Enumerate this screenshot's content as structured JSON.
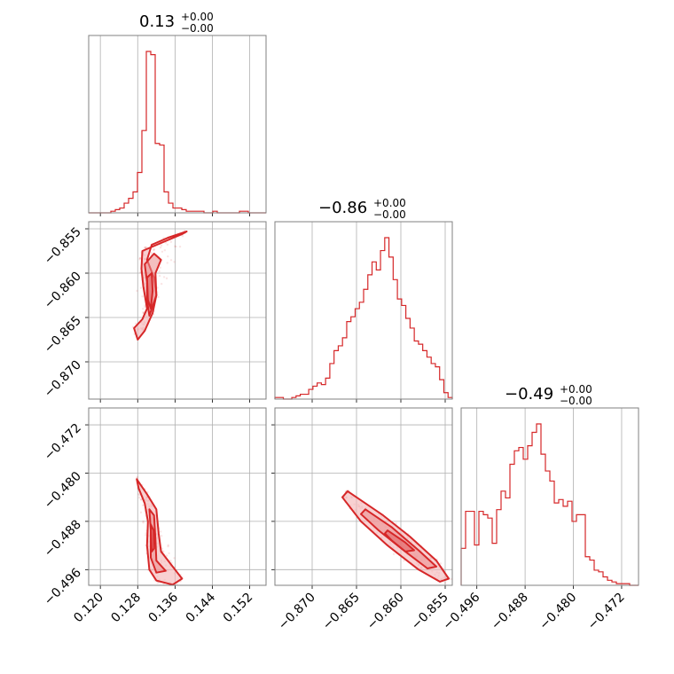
{
  "colors": {
    "line": "#d62728",
    "fill": "#f3b3b4",
    "grid": "#b0b0b0",
    "frame": "#808080"
  },
  "chart_data": {
    "type": "corner",
    "grid": true,
    "parameters": [
      {
        "title": "0.13",
        "upper": "+0.00",
        "lower": "−0.00",
        "range": [
          0.1175,
          0.1555
        ],
        "ticks": [
          0.12,
          0.128,
          0.136,
          0.144,
          0.152
        ],
        "tick_labels": [
          "0.120",
          "0.128",
          "0.136",
          "0.144",
          "0.152"
        ]
      },
      {
        "title": "−0.86",
        "upper": "+0.00",
        "lower": "−0.00",
        "range": [
          -0.8742,
          -0.8542
        ],
        "ticks": [
          -0.87,
          -0.865,
          -0.86,
          -0.855
        ],
        "tick_labels": [
          "−0.870",
          "−0.865",
          "−0.860",
          "−0.855"
        ]
      },
      {
        "title": "−0.49",
        "upper": "+0.00",
        "lower": "−0.00",
        "range": [
          -0.4986,
          -0.4692
        ],
        "ticks": [
          -0.496,
          -0.488,
          -0.48,
          -0.472
        ],
        "tick_labels": [
          "−0.496",
          "−0.488",
          "−0.480",
          "−0.472"
        ]
      }
    ],
    "histograms": [
      {
        "param": 0,
        "bin_range": [
          0.1175,
          0.1555
        ],
        "counts": [
          0,
          0,
          0,
          0,
          0,
          1,
          2,
          3,
          6,
          9,
          13,
          25,
          51,
          100,
          98,
          43,
          42,
          13,
          6,
          3,
          3,
          2,
          1,
          1,
          1,
          1,
          0,
          0,
          1,
          0,
          0,
          0,
          0,
          0,
          1,
          1,
          0,
          0,
          0,
          0
        ]
      },
      {
        "param": 1,
        "bin_range": [
          -0.8742,
          -0.8542
        ],
        "counts": [
          1,
          1,
          0,
          0,
          1,
          2,
          3,
          3,
          6,
          8,
          10,
          9,
          13,
          22,
          30,
          33,
          38,
          48,
          51,
          56,
          60,
          68,
          77,
          85,
          80,
          92,
          100,
          88,
          74,
          62,
          58,
          50,
          44,
          36,
          34,
          30,
          26,
          22,
          20,
          12,
          4,
          1
        ]
      },
      {
        "param": 2,
        "bin_range": [
          -0.4986,
          -0.4692
        ],
        "counts": [
          22,
          44,
          44,
          24,
          44,
          42,
          40,
          25,
          45,
          56,
          52,
          72,
          80,
          82,
          75,
          83,
          91,
          96,
          78,
          68,
          62,
          49,
          51,
          47,
          50,
          38,
          42,
          42,
          17,
          15,
          9,
          8,
          5,
          3,
          2,
          1,
          1,
          1,
          0,
          0
        ]
      }
    ],
    "contours_2d": [
      {
        "x_param": 0,
        "y_param": 1,
        "levels": [
          [
            [
              0.129,
              -0.8575
            ],
            [
              0.133,
              -0.8566
            ],
            [
              0.1375,
              -0.8556
            ],
            [
              0.1385,
              -0.8553
            ],
            [
              0.1345,
              -0.856
            ],
            [
              0.131,
              -0.8568
            ],
            [
              0.13,
              -0.8585
            ],
            [
              0.1315,
              -0.8605
            ],
            [
              0.132,
              -0.8625
            ],
            [
              0.1312,
              -0.8645
            ],
            [
              0.1295,
              -0.8665
            ],
            [
              0.128,
              -0.8675
            ],
            [
              0.1272,
              -0.8662
            ],
            [
              0.129,
              -0.8652
            ],
            [
              0.13,
              -0.864
            ],
            [
              0.1292,
              -0.8615
            ],
            [
              0.1288,
              -0.8595
            ],
            [
              0.129,
              -0.8575
            ]
          ],
          [
            [
              0.1295,
              -0.859
            ],
            [
              0.1315,
              -0.8578
            ],
            [
              0.133,
              -0.8585
            ],
            [
              0.1318,
              -0.86
            ],
            [
              0.132,
              -0.8625
            ],
            [
              0.1305,
              -0.8648
            ],
            [
              0.13,
              -0.863
            ],
            [
              0.13,
              -0.861
            ],
            [
              0.1295,
              -0.859
            ]
          ],
          [
            [
              0.13,
              -0.8605
            ],
            [
              0.131,
              -0.86
            ],
            [
              0.1312,
              -0.862
            ],
            [
              0.1308,
              -0.864
            ],
            [
              0.1302,
              -0.863
            ],
            [
              0.13,
              -0.8605
            ]
          ]
        ]
      },
      {
        "x_param": 0,
        "y_param": 2,
        "levels": [
          [
            [
              0.1278,
              -0.481
            ],
            [
              0.13,
              -0.4835
            ],
            [
              0.132,
              -0.486
            ],
            [
              0.1325,
              -0.49
            ],
            [
              0.133,
              -0.493
            ],
            [
              0.135,
              -0.495
            ],
            [
              0.1375,
              -0.4975
            ],
            [
              0.1355,
              -0.4985
            ],
            [
              0.132,
              -0.4978
            ],
            [
              0.1305,
              -0.496
            ],
            [
              0.13,
              -0.492
            ],
            [
              0.1302,
              -0.488
            ],
            [
              0.1295,
              -0.485
            ],
            [
              0.1282,
              -0.4825
            ],
            [
              0.1278,
              -0.481
            ]
          ],
          [
            [
              0.1305,
              -0.486
            ],
            [
              0.1315,
              -0.487
            ],
            [
              0.1318,
              -0.491
            ],
            [
              0.132,
              -0.4945
            ],
            [
              0.134,
              -0.4962
            ],
            [
              0.132,
              -0.4965
            ],
            [
              0.1308,
              -0.494
            ],
            [
              0.1308,
              -0.4895
            ],
            [
              0.1305,
              -0.486
            ]
          ],
          [
            [
              0.1308,
              -0.4885
            ],
            [
              0.1314,
              -0.4895
            ],
            [
              0.1315,
              -0.4925
            ],
            [
              0.131,
              -0.493
            ],
            [
              0.1308,
              -0.4885
            ]
          ]
        ]
      },
      {
        "x_param": 1,
        "y_param": 2,
        "levels": [
          [
            [
              -0.866,
              -0.483
            ],
            [
              -0.862,
              -0.487
            ],
            [
              -0.859,
              -0.4905
            ],
            [
              -0.856,
              -0.4945
            ],
            [
              -0.8546,
              -0.4975
            ],
            [
              -0.8556,
              -0.498
            ],
            [
              -0.858,
              -0.496
            ],
            [
              -0.8615,
              -0.492
            ],
            [
              -0.8645,
              -0.488
            ],
            [
              -0.8666,
              -0.484
            ],
            [
              -0.866,
              -0.483
            ]
          ],
          [
            [
              -0.864,
              -0.486
            ],
            [
              -0.861,
              -0.489
            ],
            [
              -0.858,
              -0.4928
            ],
            [
              -0.856,
              -0.4955
            ],
            [
              -0.857,
              -0.4958
            ],
            [
              -0.8595,
              -0.493
            ],
            [
              -0.8625,
              -0.4895
            ],
            [
              -0.8645,
              -0.4868
            ],
            [
              -0.864,
              -0.486
            ]
          ],
          [
            [
              -0.8615,
              -0.4895
            ],
            [
              -0.8595,
              -0.4915
            ],
            [
              -0.8585,
              -0.4928
            ],
            [
              -0.8595,
              -0.493
            ],
            [
              -0.861,
              -0.4912
            ],
            [
              -0.8618,
              -0.49
            ],
            [
              -0.8615,
              -0.4895
            ]
          ]
        ]
      }
    ]
  }
}
